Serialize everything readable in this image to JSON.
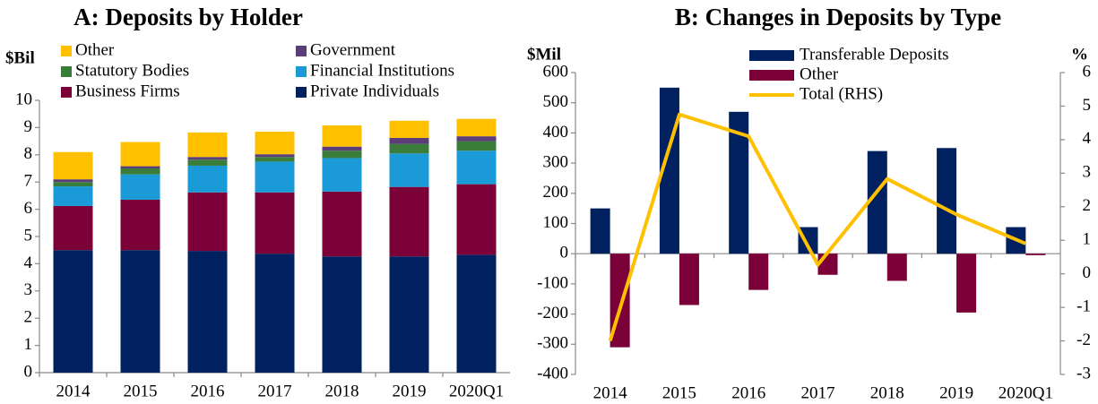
{
  "chart_data": [
    {
      "type": "bar",
      "stacked": true,
      "title": "A: Deposits by Holder",
      "y_label": "$Bil",
      "categories": [
        "2014",
        "2015",
        "2016",
        "2017",
        "2018",
        "2019",
        "2020Q1"
      ],
      "series": [
        {
          "name": "Private Individuals",
          "color": "#002060",
          "values": [
            4.5,
            4.5,
            4.47,
            4.37,
            4.27,
            4.27,
            4.33
          ]
        },
        {
          "name": "Business Firms",
          "color": "#7b0038",
          "values": [
            1.62,
            1.85,
            2.15,
            2.25,
            2.38,
            2.55,
            2.59
          ]
        },
        {
          "name": "Financial Institutions",
          "color": "#1a9ad6",
          "values": [
            0.72,
            0.93,
            0.98,
            1.13,
            1.23,
            1.23,
            1.23
          ]
        },
        {
          "name": "Statutory Bodies",
          "color": "#3a7d3a",
          "values": [
            0.16,
            0.22,
            0.22,
            0.17,
            0.27,
            0.35,
            0.35
          ]
        },
        {
          "name": "Government",
          "color": "#5b3d7a",
          "values": [
            0.1,
            0.08,
            0.1,
            0.1,
            0.15,
            0.22,
            0.18
          ]
        },
        {
          "name": "Other",
          "color": "#ffc000",
          "values": [
            1.0,
            0.89,
            0.9,
            0.83,
            0.78,
            0.63,
            0.64
          ]
        }
      ],
      "ylim": [
        0,
        10
      ],
      "yticks": [
        0,
        1,
        2,
        3,
        4,
        5,
        6,
        7,
        8,
        9,
        10
      ],
      "grid": false
    },
    {
      "type": "bar",
      "stacked": false,
      "title": "B: Changes in Deposits by Type",
      "y_label": "$Mil",
      "y2_label": "%",
      "categories": [
        "2014",
        "2015",
        "2016",
        "2017",
        "2018",
        "2019",
        "2020Q1"
      ],
      "series": [
        {
          "name": "Transferable Deposits",
          "color": "#002060",
          "values": [
            150,
            550,
            470,
            88,
            340,
            350,
            88
          ]
        },
        {
          "name": "Other",
          "color": "#7b0038",
          "values": [
            -310,
            -170,
            -120,
            -70,
            -90,
            -195,
            -5
          ]
        },
        {
          "name": "Total (RHS)",
          "color": "#ffc000",
          "type": "line",
          "axis": "y2",
          "values": [
            -2.0,
            4.75,
            4.1,
            0.27,
            2.83,
            1.77,
            0.9
          ]
        }
      ],
      "ylim": [
        -400,
        600
      ],
      "yticks": [
        -400,
        -300,
        -200,
        -100,
        0,
        100,
        200,
        300,
        400,
        500,
        600
      ],
      "y2lim": [
        -3,
        6
      ],
      "y2ticks": [
        -3,
        -2,
        -1,
        0,
        1,
        2,
        3,
        4,
        5,
        6
      ],
      "grid": false
    }
  ]
}
